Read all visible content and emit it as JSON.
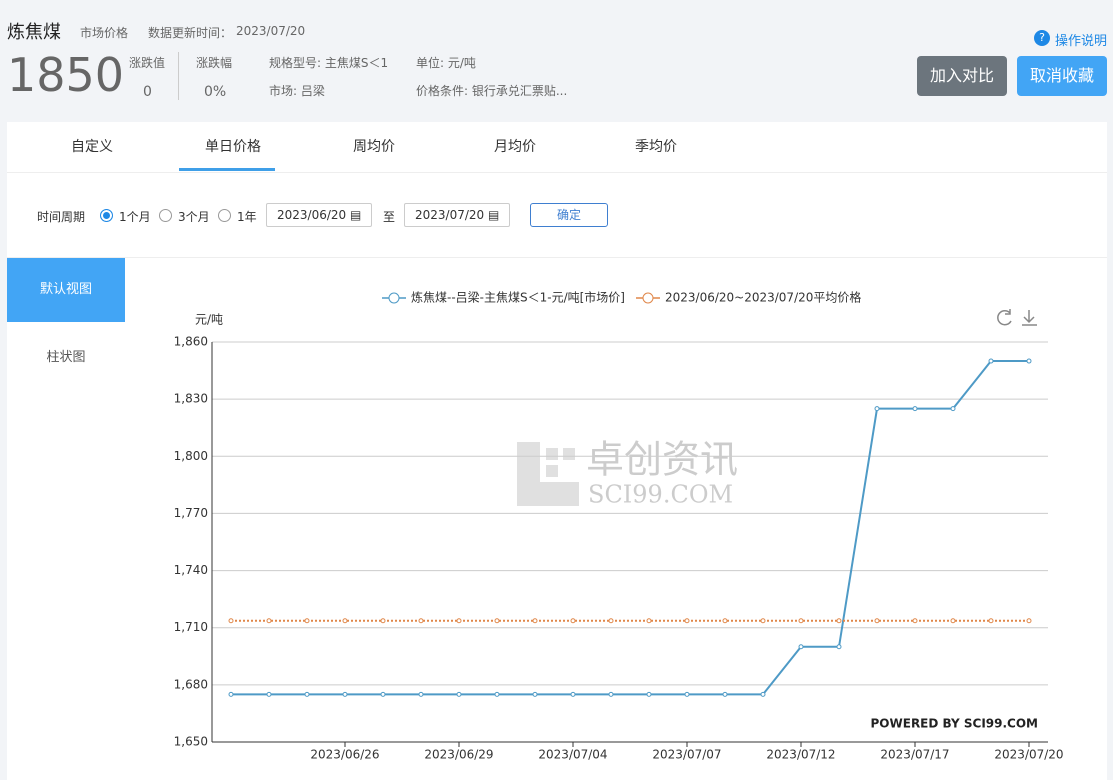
{
  "header": {
    "title": "炼焦煤",
    "market_price": "市场价格",
    "update_label": "数据更新时间：",
    "update_date": "2023/07/20",
    "help": "操作说明",
    "price": "1850",
    "change_label": "涨跌值",
    "change": "0",
    "pct_label": "涨跌幅",
    "pct": "0%",
    "spec": "规格型号: 主焦煤S＜1",
    "market": "市场: 吕梁",
    "unit": "单位: 元/吨",
    "condition": "价格条件: 银行承兑汇票贴...",
    "btn_compare": "加入对比",
    "btn_unfav": "取消收藏"
  },
  "tabs": [
    "自定义",
    "单日价格",
    "周均价",
    "月均价",
    "季均价"
  ],
  "filter": {
    "label": "时间周期",
    "options": [
      "1个月",
      "3个月",
      "1年"
    ],
    "start": "2023/06/20",
    "sep": "至",
    "end": "2023/07/20",
    "confirm": "确定"
  },
  "side": [
    "默认视图",
    "柱状图"
  ],
  "chart_data": {
    "type": "line",
    "y_label": "元/吨",
    "watermark": "卓创资讯",
    "watermark_sub": "SCI99.COM",
    "credit": "POWERED BY SCI99.COM",
    "categories": [
      null,
      null,
      null,
      "2023/06/26",
      null,
      null,
      "2023/06/29",
      null,
      null,
      "2023/07/04",
      null,
      null,
      "2023/07/07",
      null,
      null,
      "2023/07/12",
      null,
      null,
      "2023/07/17",
      null,
      null,
      "2023/07/20"
    ],
    "series": [
      {
        "name": "炼焦煤--吕梁-主焦煤S＜1-元/吨[市场价]",
        "color": "#4e9ac6",
        "values": [
          1675,
          1675,
          1675,
          1675,
          1675,
          1675,
          1675,
          1675,
          1675,
          1675,
          1675,
          1675,
          1675,
          1675,
          1675,
          1700,
          1700,
          1825,
          1825,
          1825,
          1850,
          1850
        ]
      },
      {
        "name": "2023/06/20~2023/07/20平均价格",
        "color": "#e0874a",
        "dotted": true,
        "values": [
          1713.64,
          1713.64,
          1713.64,
          1713.64,
          1713.64,
          1713.64,
          1713.64,
          1713.64,
          1713.64,
          1713.64,
          1713.64,
          1713.64,
          1713.64,
          1713.64,
          1713.64,
          1713.64,
          1713.64,
          1713.64,
          1713.64,
          1713.64,
          1713.64,
          1713.64
        ]
      }
    ],
    "ylim": [
      1650,
      1860
    ],
    "yticks": [
      {
        "value": 1650,
        "label": "1,650"
      },
      {
        "value": 1680,
        "label": "1,680"
      },
      {
        "value": 1710,
        "label": "1,710"
      },
      {
        "value": 1740,
        "label": "1,740"
      },
      {
        "value": 1770,
        "label": "1,770"
      },
      {
        "value": 1800,
        "label": "1,800"
      },
      {
        "value": 1830,
        "label": "1,830"
      },
      {
        "value": 1860,
        "label": "1,860"
      }
    ],
    "grid": true
  }
}
